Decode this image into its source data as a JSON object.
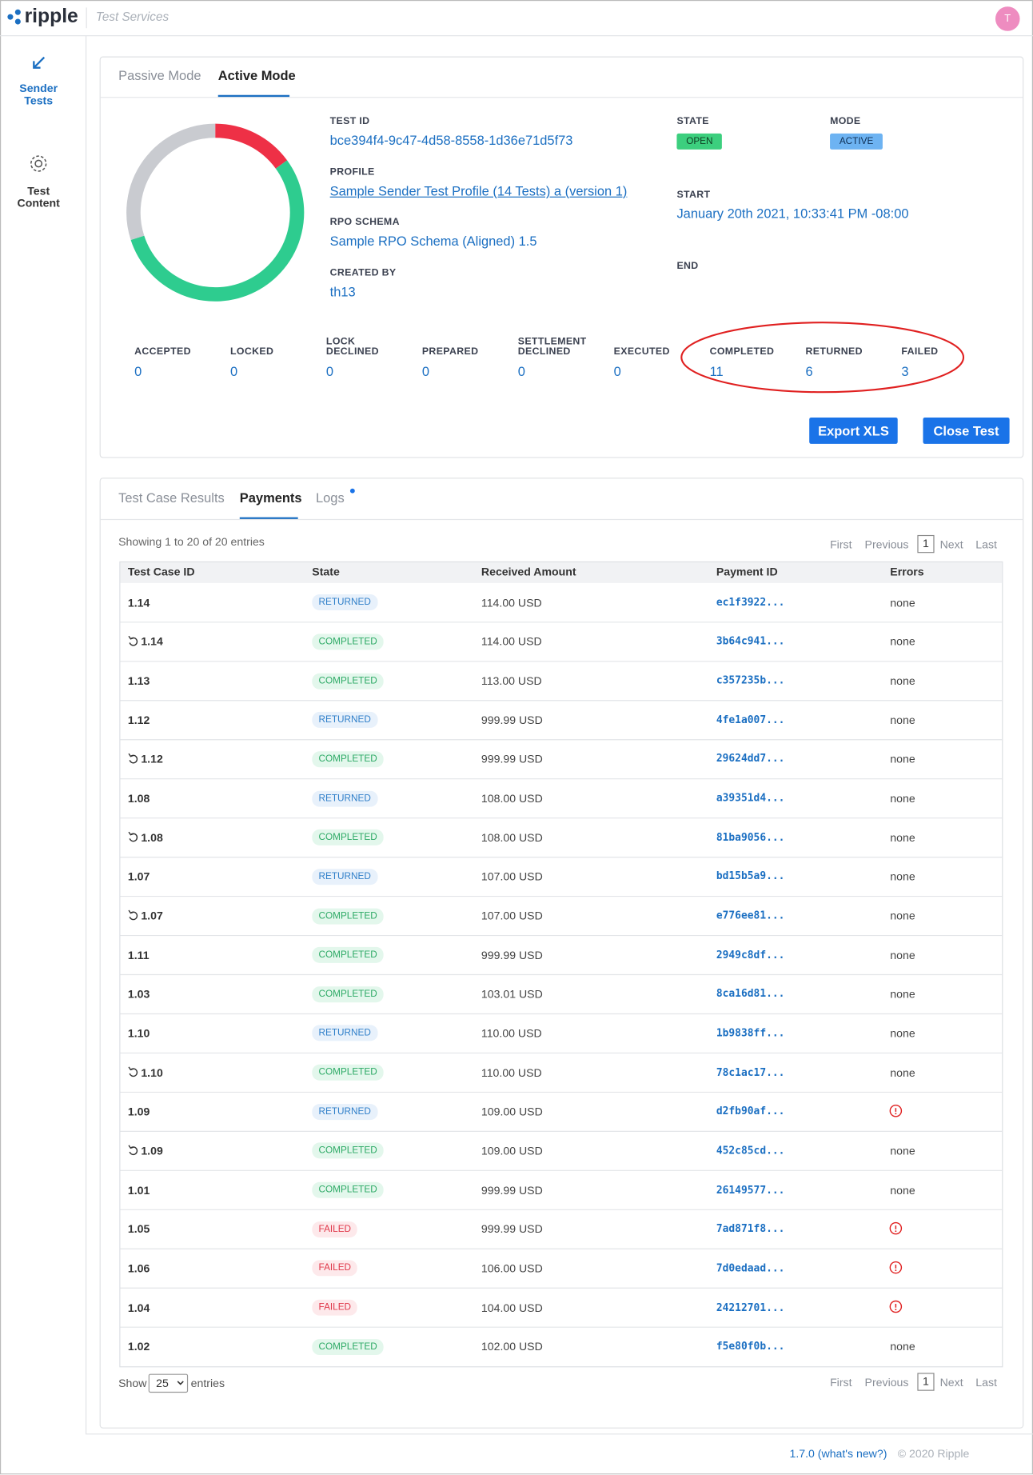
{
  "header": {
    "brand": "ripple",
    "app": "Test Services",
    "avatar": "T"
  },
  "sidebar": [
    {
      "label": "Sender Tests"
    },
    {
      "label": "Test Content"
    }
  ],
  "test_panel": {
    "tabs": [
      "Passive Mode",
      "Active Mode"
    ],
    "fields": [
      {
        "label": "TEST ID",
        "value": "bce394f4-9c47-4d58-8558-1d36e71d5f73"
      },
      {
        "label": "PROFILE",
        "value": "Sample Sender Test Profile (14 Tests) a (version 1)"
      },
      {
        "label": "RPO SCHEMA",
        "value": "Sample RPO Schema (Aligned) 1.5"
      },
      {
        "label": "CREATED BY",
        "value": "th13"
      },
      {
        "label": "STATE",
        "value": "OPEN"
      },
      {
        "label": "MODE",
        "value": "ACTIVE"
      },
      {
        "label": "START",
        "value": "January 20th 2021, 10:33:41 PM -08:00"
      },
      {
        "label": "END"
      }
    ],
    "counts": [
      {
        "label": "ACCEPTED",
        "value": 0
      },
      {
        "label": "LOCKED",
        "value": 0
      },
      {
        "label": "LOCK DECLINED",
        "value": 0
      },
      {
        "label": "PREPARED",
        "value": 0
      },
      {
        "label": "SETTLEMENT DECLINED",
        "value": 0
      },
      {
        "label": "EXECUTED",
        "value": 0
      },
      {
        "label": "COMPLETED",
        "value": 11,
        "color": "#2ecc8f"
      },
      {
        "label": "RETURNED",
        "value": 6,
        "color": "#c9cbd0"
      },
      {
        "label": "FAILED",
        "value": 3,
        "color": "#ee3046"
      }
    ],
    "buttons": [
      "Export XLS",
      "Close Test"
    ]
  },
  "results_panel": {
    "tabs": [
      "Test Case Results",
      "Payments",
      "Logs"
    ],
    "summary": "Showing 1 to 20 of 20 entries",
    "pagination": [
      "First",
      "Previous",
      "1",
      "Next",
      "Last"
    ],
    "columns": [
      "Test Case ID",
      "State",
      "Received Amount",
      "Payment ID",
      "Errors"
    ],
    "rows": [
      {
        "id": "1.14",
        "retry": false,
        "state": "RETURNED",
        "amount": "114.00 USD",
        "payment_id": "ec1f3922...",
        "errors": "none"
      },
      {
        "id": "1.14",
        "retry": true,
        "state": "COMPLETED",
        "amount": "114.00 USD",
        "payment_id": "3b64c941...",
        "errors": "none"
      },
      {
        "id": "1.13",
        "retry": false,
        "state": "COMPLETED",
        "amount": "113.00 USD",
        "payment_id": "c357235b...",
        "errors": "none"
      },
      {
        "id": "1.12",
        "retry": false,
        "state": "RETURNED",
        "amount": "999.99 USD",
        "payment_id": "4fe1a007...",
        "errors": "none"
      },
      {
        "id": "1.12",
        "retry": true,
        "state": "COMPLETED",
        "amount": "999.99 USD",
        "payment_id": "29624dd7...",
        "errors": "none"
      },
      {
        "id": "1.08",
        "retry": false,
        "state": "RETURNED",
        "amount": "108.00 USD",
        "payment_id": "a39351d4...",
        "errors": "none"
      },
      {
        "id": "1.08",
        "retry": true,
        "state": "COMPLETED",
        "amount": "108.00 USD",
        "payment_id": "81ba9056...",
        "errors": "none"
      },
      {
        "id": "1.07",
        "retry": false,
        "state": "RETURNED",
        "amount": "107.00 USD",
        "payment_id": "bd15b5a9...",
        "errors": "none"
      },
      {
        "id": "1.07",
        "retry": true,
        "state": "COMPLETED",
        "amount": "107.00 USD",
        "payment_id": "e776ee81...",
        "errors": "none"
      },
      {
        "id": "1.11",
        "retry": false,
        "state": "COMPLETED",
        "amount": "999.99 USD",
        "payment_id": "2949c8df...",
        "errors": "none"
      },
      {
        "id": "1.03",
        "retry": false,
        "state": "COMPLETED",
        "amount": "103.01 USD",
        "payment_id": "8ca16d81...",
        "errors": "none"
      },
      {
        "id": "1.10",
        "retry": false,
        "state": "RETURNED",
        "amount": "110.00 USD",
        "payment_id": "1b9838ff...",
        "errors": "none"
      },
      {
        "id": "1.10",
        "retry": true,
        "state": "COMPLETED",
        "amount": "110.00 USD",
        "payment_id": "78c1ac17...",
        "errors": "none"
      },
      {
        "id": "1.09",
        "retry": false,
        "state": "RETURNED",
        "amount": "109.00 USD",
        "payment_id": "d2fb90af...",
        "errors": null
      },
      {
        "id": "1.09",
        "retry": true,
        "state": "COMPLETED",
        "amount": "109.00 USD",
        "payment_id": "452c85cd...",
        "errors": "none"
      },
      {
        "id": "1.01",
        "retry": false,
        "state": "COMPLETED",
        "amount": "999.99 USD",
        "payment_id": "26149577...",
        "errors": "none"
      },
      {
        "id": "1.05",
        "retry": false,
        "state": "FAILED",
        "amount": "999.99 USD",
        "payment_id": "7ad871f8...",
        "errors": null
      },
      {
        "id": "1.06",
        "retry": false,
        "state": "FAILED",
        "amount": "106.00 USD",
        "payment_id": "7d0edaad...",
        "errors": null
      },
      {
        "id": "1.04",
        "retry": false,
        "state": "FAILED",
        "amount": "104.00 USD",
        "payment_id": "24212701...",
        "errors": null
      },
      {
        "id": "1.02",
        "retry": false,
        "state": "COMPLETED",
        "amount": "102.00 USD",
        "payment_id": "f5e80f0b...",
        "errors": "none"
      }
    ],
    "show": "Show",
    "page_size": "25",
    "entries": "entries"
  },
  "footer": {
    "version": "1.7.0 (what's new?)",
    "copyright": "© 2020 Ripple"
  }
}
